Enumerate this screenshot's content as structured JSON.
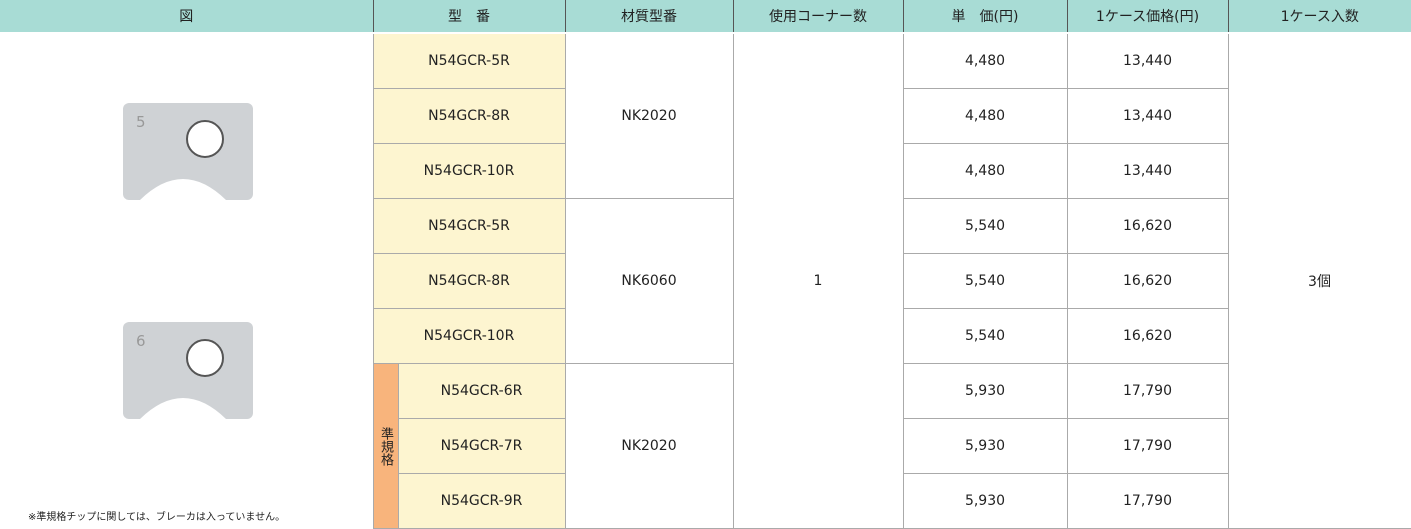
{
  "header": [
    "図",
    "型　番",
    "材質型番",
    "使用コーナー数",
    "単　価(円)",
    "1ケース価格(円)",
    "1ケース入数"
  ],
  "rows": [
    {
      "model": "N54GCR-5R",
      "unit_price": "4,480",
      "case_price": "13,440"
    },
    {
      "model": "N54GCR-8R",
      "unit_price": "4,480",
      "case_price": "13,440"
    },
    {
      "model": "N54GCR-10R",
      "unit_price": "4,480",
      "case_price": "13,440"
    },
    {
      "model": "N54GCR-5R",
      "unit_price": "5,540",
      "case_price": "16,620"
    },
    {
      "model": "N54GCR-8R",
      "unit_price": "5,540",
      "case_price": "16,620"
    },
    {
      "model": "N54GCR-10R",
      "unit_price": "5,540",
      "case_price": "16,620"
    },
    {
      "model": "N54GCR-6R",
      "unit_price": "5,930",
      "case_price": "17,790"
    },
    {
      "model": "N54GCR-7R",
      "unit_price": "5,930",
      "case_price": "17,790"
    },
    {
      "model": "N54GCR-9R",
      "unit_price": "5,930",
      "case_price": "17,790"
    }
  ],
  "materials": [
    "NK2020",
    "NK6060",
    "NK2020"
  ],
  "corners": "1",
  "case_qty": "3個",
  "semi_standard_label": "準規格",
  "chip_labels": [
    "5",
    "6"
  ],
  "note": "※準規格チップに関しては、ブレーカは入っていません。"
}
